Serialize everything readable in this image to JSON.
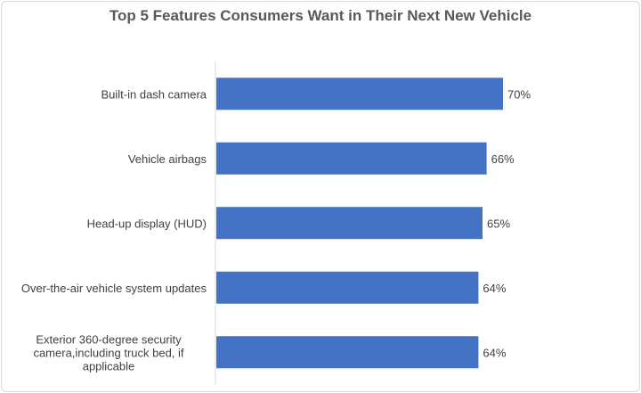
{
  "chart_data": {
    "type": "bar",
    "orientation": "horizontal",
    "title": "Top 5 Features Consumers Want in Their Next New Vehicle",
    "categories": [
      [
        "Built-in dash camera"
      ],
      [
        "Vehicle airbags"
      ],
      [
        "Head-up display (HUD)"
      ],
      [
        "Over-the-air vehicle system updates"
      ],
      [
        "Exterior 360-degree security",
        "camera,including truck bed, if",
        "applicable"
      ]
    ],
    "values": [
      70,
      66,
      65,
      64,
      64
    ],
    "value_labels": [
      "70%",
      "66%",
      "65%",
      "64%",
      "64%"
    ],
    "xlim": [
      0,
      100
    ],
    "bar_color": "#4472c4",
    "grid": false,
    "legend": "none"
  }
}
